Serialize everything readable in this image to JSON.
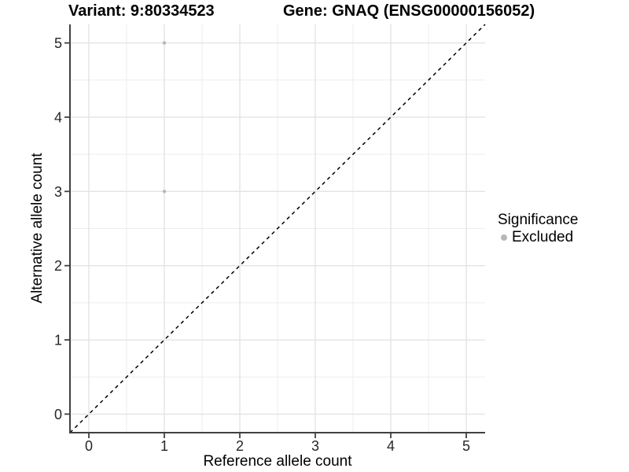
{
  "chart_data": {
    "type": "scatter",
    "title_variant": "Variant: 9:80334523",
    "title_gene": "Gene: GNAQ (ENSG00000156052)",
    "xlabel": "Reference allele count",
    "ylabel": "Alternative allele count",
    "xlim": [
      -0.25,
      5.25
    ],
    "ylim": [
      -0.25,
      5.25
    ],
    "xticks": [
      0,
      1,
      2,
      3,
      4,
      5
    ],
    "yticks": [
      0,
      1,
      2,
      3,
      4,
      5
    ],
    "minor_step": 0.5,
    "grid": "on",
    "identity_line": {
      "slope": 1,
      "intercept": 0,
      "style": "dashed",
      "color": "#000000"
    },
    "legend": {
      "position": "right",
      "title": "Significance",
      "items": [
        {
          "label": "Excluded",
          "color": "#B8B8B8"
        }
      ]
    },
    "series": [
      {
        "name": "Excluded",
        "color": "#B8B8B8",
        "point_radius": 2.2,
        "points": [
          [
            1,
            5
          ],
          [
            1,
            3
          ]
        ]
      }
    ],
    "colors": {
      "background": "#FFFFFF",
      "grid_major": "#E3E3E3",
      "grid_minor": "#EDEDED",
      "axis_line": "#404040",
      "tick_label": "#262626"
    }
  }
}
